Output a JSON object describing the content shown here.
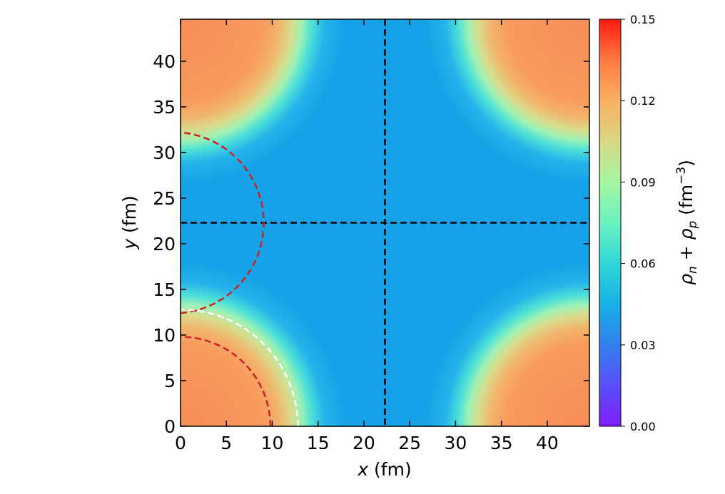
{
  "chart_data": {
    "type": "heatmap",
    "title": "",
    "xlabel": "x (fm)",
    "xlabel_var": "x",
    "xlabel_unit": " (fm)",
    "ylabel": "y (fm)",
    "ylabel_var": "y",
    "ylabel_unit": " (fm)",
    "xlim": [
      0,
      44.6
    ],
    "ylim": [
      0,
      44.6
    ],
    "xticks": [
      0,
      5,
      10,
      15,
      20,
      25,
      30,
      35,
      40
    ],
    "yticks": [
      0,
      5,
      10,
      15,
      20,
      25,
      30,
      35,
      40
    ],
    "grid": false,
    "description_values": {
      "background_density": 0.035,
      "blob_peak_density": 0.125,
      "blob_centers": [
        [
          0,
          0
        ],
        [
          44.6,
          0
        ],
        [
          0,
          44.6
        ],
        [
          44.6,
          44.6
        ]
      ]
    },
    "reference_lines": [
      {
        "orientation": "vertical",
        "value": 22.3,
        "color": "#000000",
        "style": "dashed"
      },
      {
        "orientation": "horizontal",
        "value": 22.3,
        "color": "#000000",
        "style": "dashed"
      }
    ],
    "reference_circles": [
      {
        "center": [
          0,
          22.3
        ],
        "radius": 9.9,
        "color": "#cc2222",
        "style": "dashed"
      },
      {
        "center": [
          0,
          0
        ],
        "radius": 9.8,
        "color": "#cc2222",
        "style": "dashed"
      },
      {
        "center": [
          0,
          0
        ],
        "radius": 12.8,
        "color": "#ffffff",
        "style": "dashed"
      }
    ],
    "colorbar": {
      "label": "ρn + ρp (fm−3)",
      "label_main": "ρ",
      "range": [
        0.0,
        0.15
      ],
      "ticks": [
        "0.00",
        "0.03",
        "0.06",
        "0.09",
        "0.12",
        "0.15"
      ],
      "colormap": "rainbow"
    }
  }
}
